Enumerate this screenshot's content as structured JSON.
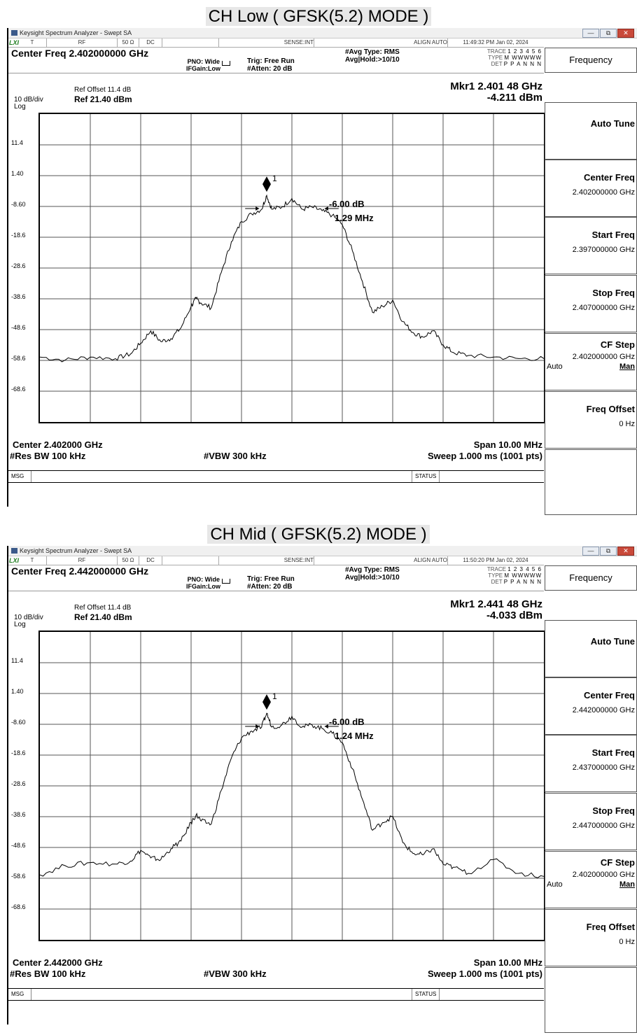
{
  "panels": [
    {
      "title": "CH Low ( GFSK(5.2) MODE )",
      "window_title": "Keysight Spectrum Analyzer - Swept SA",
      "status": {
        "xi": "LXI",
        "t": "T",
        "rf": "RF",
        "ohm": "50 Ω",
        "dc": "DC",
        "sense": "SENSE:INT",
        "align": "ALIGN AUTO",
        "time": "11:49:32 PM Jan 02, 2024"
      },
      "center_label": "Center Freq 2.402000000 GHz",
      "pno": "PNO: Wide",
      "ifgain": "IFGain:Low",
      "trig": "Trig: Free Run",
      "atten": "#Atten: 20 dB",
      "avg_type": "#Avg Type: RMS",
      "avg_hold": "Avg|Hold:>10/10",
      "trace": {
        "trace_label": "TRACE",
        "trace_vals": "1 2 3 4 5 6",
        "type_label": "TYPE",
        "type_vals": "M WWWWW",
        "det_label": "DET",
        "det_vals": "P P A N N N"
      },
      "ref_offset": "Ref Offset 11.4 dB",
      "ref_value": "Ref 21.40 dBm",
      "div": "10 dB/div",
      "log": "Log",
      "marker_freq": "Mkr1 2.401 48 GHz",
      "marker_power": "-4.211 dBm",
      "marker_id": "1",
      "yticks": [
        "11.4",
        "1.40",
        "-8.60",
        "-18.6",
        "-28.6",
        "-38.6",
        "-48.6",
        "-58.6",
        "-68.6"
      ],
      "db_annotation": "-6.00 dB",
      "bw_annotation": "1.29 MHz",
      "center_bottom": "Center 2.402000 GHz",
      "span": "Span 10.00 MHz",
      "rbw": "#Res BW 100 kHz",
      "vbw": "#VBW 300 kHz",
      "sweep": "Sweep  1.000 ms (1001 pts)",
      "msg": "MSG",
      "status_label": "STATUS",
      "softkeys": {
        "header": "Frequency",
        "auto_tune": "Auto Tune",
        "center_freq_label": "Center Freq",
        "center_freq_value": "2.402000000 GHz",
        "start_freq_label": "Start Freq",
        "start_freq_value": "2.397000000 GHz",
        "stop_freq_label": "Stop Freq",
        "stop_freq_value": "2.407000000 GHz",
        "cf_step_label": "CF Step",
        "cf_step_value": "2.402000000 GHz",
        "cf_auto": "Auto",
        "cf_man": "Man",
        "freq_offset_label": "Freq Offset",
        "freq_offset_value": "0 Hz"
      }
    },
    {
      "title": "CH Mid ( GFSK(5.2) MODE )",
      "window_title": "Keysight Spectrum Analyzer - Swept SA",
      "status": {
        "xi": "LXI",
        "t": "T",
        "rf": "RF",
        "ohm": "50 Ω",
        "dc": "DC",
        "sense": "SENSE:INT",
        "align": "ALIGN AUTO",
        "time": "11:50:20 PM Jan 02, 2024"
      },
      "center_label": "Center Freq 2.442000000 GHz",
      "pno": "PNO: Wide",
      "ifgain": "IFGain:Low",
      "trig": "Trig: Free Run",
      "atten": "#Atten: 20 dB",
      "avg_type": "#Avg Type: RMS",
      "avg_hold": "Avg|Hold:>10/10",
      "trace": {
        "trace_label": "TRACE",
        "trace_vals": "1 2 3 4 5 6",
        "type_label": "TYPE",
        "type_vals": "M WWWWW",
        "det_label": "DET",
        "det_vals": "P P A N N N"
      },
      "ref_offset": "Ref Offset 11.4 dB",
      "ref_value": "Ref 21.40 dBm",
      "div": "10 dB/div",
      "log": "Log",
      "marker_freq": "Mkr1 2.441 48 GHz",
      "marker_power": "-4.033 dBm",
      "marker_id": "1",
      "yticks": [
        "11.4",
        "1.40",
        "-8.60",
        "-18.6",
        "-28.6",
        "-38.6",
        "-48.6",
        "-58.6",
        "-68.6"
      ],
      "db_annotation": "-6.00 dB",
      "bw_annotation": "1.24 MHz",
      "center_bottom": "Center 2.442000 GHz",
      "span": "Span 10.00 MHz",
      "rbw": "#Res BW 100 kHz",
      "vbw": "#VBW 300 kHz",
      "sweep": "Sweep  1.000 ms (1001 pts)",
      "msg": "MSG",
      "status_label": "STATUS",
      "softkeys": {
        "header": "Frequency",
        "auto_tune": "Auto Tune",
        "center_freq_label": "Center Freq",
        "center_freq_value": "2.442000000 GHz",
        "start_freq_label": "Start Freq",
        "start_freq_value": "2.437000000 GHz",
        "stop_freq_label": "Stop Freq",
        "stop_freq_value": "2.447000000 GHz",
        "cf_step_label": "CF Step",
        "cf_step_value": "2.402000000 GHz",
        "cf_auto": "Auto",
        "cf_man": "Man",
        "freq_offset_label": "Freq Offset",
        "freq_offset_value": "0 Hz"
      }
    }
  ],
  "chart_data": [
    {
      "type": "line",
      "x_unit": "MHz offset from center",
      "xlim": [
        -5,
        5
      ],
      "ylim": [
        -78.6,
        21.4
      ],
      "x": [
        -5.0,
        -4.5,
        -4.0,
        -3.5,
        -3.2,
        -3.0,
        -2.8,
        -2.6,
        -2.4,
        -2.2,
        -2.0,
        -1.9,
        -1.8,
        -1.6,
        -1.4,
        -1.2,
        -1.0,
        -0.8,
        -0.6,
        -0.5,
        -0.4,
        -0.2,
        0.0,
        0.2,
        0.4,
        0.6,
        0.8,
        1.0,
        1.2,
        1.4,
        1.6,
        1.8,
        2.0,
        2.2,
        2.4,
        2.6,
        2.8,
        3.0,
        3.2,
        3.5,
        4.0,
        4.5,
        5.0
      ],
      "y": [
        -57.5,
        -58.5,
        -57.5,
        -58.0,
        -56.5,
        -53.0,
        -49.0,
        -52.5,
        -51.5,
        -48.0,
        -41.0,
        -38.5,
        -40.0,
        -41.5,
        -30.0,
        -20.0,
        -13.5,
        -11.0,
        -9.5,
        -5.0,
        -9.5,
        -8.8,
        -6.0,
        -9.5,
        -8.8,
        -10.0,
        -11.5,
        -14.5,
        -23.0,
        -33.0,
        -43.0,
        -41.0,
        -39.0,
        -46.0,
        -49.5,
        -51.0,
        -49.0,
        -53.5,
        -56.0,
        -57.0,
        -57.5,
        -58.0,
        -58.0
      ]
    },
    {
      "type": "line",
      "x_unit": "MHz offset from center",
      "xlim": [
        -5,
        5
      ],
      "ylim": [
        -78.6,
        21.4
      ],
      "x": [
        -5.0,
        -4.5,
        -4.0,
        -3.5,
        -3.2,
        -3.0,
        -2.8,
        -2.6,
        -2.4,
        -2.2,
        -2.0,
        -1.9,
        -1.8,
        -1.6,
        -1.4,
        -1.2,
        -1.0,
        -0.8,
        -0.6,
        -0.5,
        -0.4,
        -0.2,
        0.0,
        0.2,
        0.4,
        0.6,
        0.8,
        1.0,
        1.2,
        1.4,
        1.6,
        1.8,
        2.0,
        2.2,
        2.4,
        2.6,
        2.8,
        3.0,
        3.2,
        3.5,
        4.0,
        4.5,
        5.0
      ],
      "y": [
        -57.5,
        -54.5,
        -53.5,
        -54.0,
        -53.0,
        -49.5,
        -52.0,
        -52.5,
        -49.0,
        -46.5,
        -40.5,
        -38.0,
        -40.0,
        -41.0,
        -30.0,
        -19.5,
        -13.0,
        -10.8,
        -9.5,
        -5.0,
        -9.5,
        -8.8,
        -6.0,
        -9.5,
        -8.8,
        -10.0,
        -11.5,
        -14.5,
        -23.0,
        -33.0,
        -43.0,
        -40.5,
        -38.5,
        -47.0,
        -50.5,
        -51.0,
        -49.0,
        -54.0,
        -55.0,
        -57.0,
        -52.5,
        -57.0,
        -58.0
      ]
    }
  ]
}
